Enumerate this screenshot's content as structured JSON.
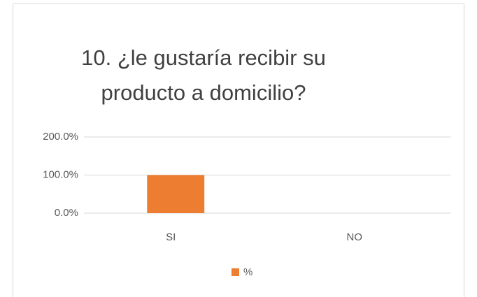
{
  "chart_data": {
    "type": "bar",
    "title": "10. ¿le gustaría recibir su producto a domicilio?",
    "categories": [
      "SI",
      "NO"
    ],
    "series": [
      {
        "name": "%",
        "color": "#ed7d31",
        "values": [
          100,
          0
        ]
      }
    ],
    "ylim": [
      0,
      200
    ],
    "yticks": [
      {
        "value": 0,
        "label": "0.0%"
      },
      {
        "value": 100,
        "label": "100.0%"
      },
      {
        "value": 200,
        "label": "200.0%"
      }
    ],
    "grid": true,
    "legend": "bottom"
  }
}
